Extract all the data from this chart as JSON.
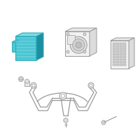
{
  "bg_color": "#ffffff",
  "hc": "#4ec8d6",
  "he": "#2aabb8",
  "hc_light": "#7adce8",
  "hc_dark": "#1e8fa0",
  "lc": "#bbbbbb",
  "dc": "#999999",
  "fig_size": [
    2.0,
    2.0
  ],
  "dpi": 100
}
